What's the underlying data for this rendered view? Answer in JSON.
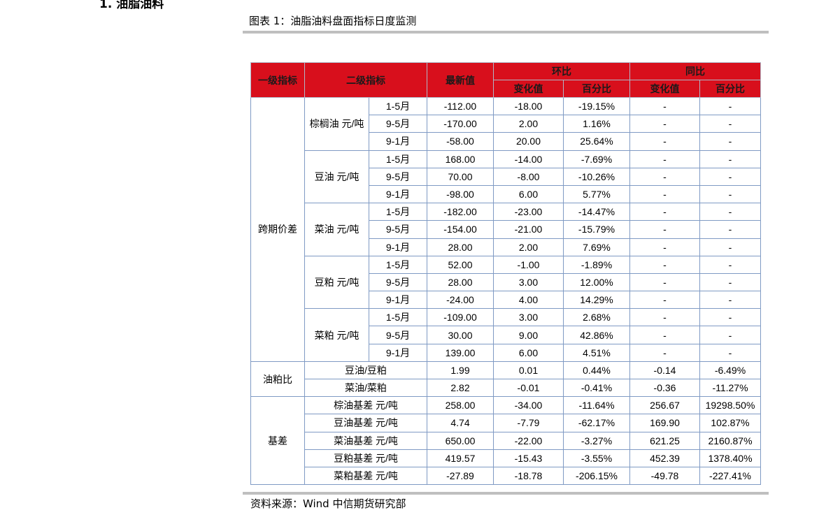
{
  "section_heading": "1. 油脂油料",
  "figure_title": "图表 1：油脂油料盘面指标日度监测",
  "source": "资料来源：Wind 中信期货研究部",
  "table": {
    "headers": {
      "level1": "一级指标",
      "level2": "二级指标",
      "latest": "最新值",
      "mom": "环比",
      "yoy": "同比",
      "change": "变化值",
      "pct": "百分比"
    },
    "groups": [
      {
        "name": "跨期价差",
        "subgroups": [
          {
            "name": "棕榈油 元/吨",
            "rows": [
              {
                "period": "1-5月",
                "latest": "-112.00",
                "mom_change": "-18.00",
                "mom_pct": "-19.15%",
                "yoy_change": "-",
                "yoy_pct": "-"
              },
              {
                "period": "9-5月",
                "latest": "-170.00",
                "mom_change": "2.00",
                "mom_pct": "1.16%",
                "yoy_change": "-",
                "yoy_pct": "-"
              },
              {
                "period": "9-1月",
                "latest": "-58.00",
                "mom_change": "20.00",
                "mom_pct": "25.64%",
                "yoy_change": "-",
                "yoy_pct": "-"
              }
            ]
          },
          {
            "name": "豆油 元/吨",
            "rows": [
              {
                "period": "1-5月",
                "latest": "168.00",
                "mom_change": "-14.00",
                "mom_pct": "-7.69%",
                "yoy_change": "-",
                "yoy_pct": "-"
              },
              {
                "period": "9-5月",
                "latest": "70.00",
                "mom_change": "-8.00",
                "mom_pct": "-10.26%",
                "yoy_change": "-",
                "yoy_pct": "-"
              },
              {
                "period": "9-1月",
                "latest": "-98.00",
                "mom_change": "6.00",
                "mom_pct": "5.77%",
                "yoy_change": "-",
                "yoy_pct": "-"
              }
            ]
          },
          {
            "name": "菜油 元/吨",
            "rows": [
              {
                "period": "1-5月",
                "latest": "-182.00",
                "mom_change": "-23.00",
                "mom_pct": "-14.47%",
                "yoy_change": "-",
                "yoy_pct": "-"
              },
              {
                "period": "9-5月",
                "latest": "-154.00",
                "mom_change": "-21.00",
                "mom_pct": "-15.79%",
                "yoy_change": "-",
                "yoy_pct": "-"
              },
              {
                "period": "9-1月",
                "latest": "28.00",
                "mom_change": "2.00",
                "mom_pct": "7.69%",
                "yoy_change": "-",
                "yoy_pct": "-"
              }
            ]
          },
          {
            "name": "豆粕 元/吨",
            "rows": [
              {
                "period": "1-5月",
                "latest": "52.00",
                "mom_change": "-1.00",
                "mom_pct": "-1.89%",
                "yoy_change": "-",
                "yoy_pct": "-"
              },
              {
                "period": "9-5月",
                "latest": "28.00",
                "mom_change": "3.00",
                "mom_pct": "12.00%",
                "yoy_change": "-",
                "yoy_pct": "-"
              },
              {
                "period": "9-1月",
                "latest": "-24.00",
                "mom_change": "4.00",
                "mom_pct": "14.29%",
                "yoy_change": "-",
                "yoy_pct": "-"
              }
            ]
          },
          {
            "name": "菜粕 元/吨",
            "rows": [
              {
                "period": "1-5月",
                "latest": "-109.00",
                "mom_change": "3.00",
                "mom_pct": "2.68%",
                "yoy_change": "-",
                "yoy_pct": "-"
              },
              {
                "period": "9-5月",
                "latest": "30.00",
                "mom_change": "9.00",
                "mom_pct": "42.86%",
                "yoy_change": "-",
                "yoy_pct": "-"
              },
              {
                "period": "9-1月",
                "latest": "139.00",
                "mom_change": "6.00",
                "mom_pct": "4.51%",
                "yoy_change": "-",
                "yoy_pct": "-"
              }
            ]
          }
        ]
      },
      {
        "name": "油粕比",
        "rows": [
          {
            "label": "豆油/豆粕",
            "latest": "1.99",
            "mom_change": "0.01",
            "mom_pct": "0.44%",
            "yoy_change": "-0.14",
            "yoy_pct": "-6.49%"
          },
          {
            "label": "菜油/菜粕",
            "latest": "2.82",
            "mom_change": "-0.01",
            "mom_pct": "-0.41%",
            "yoy_change": "-0.36",
            "yoy_pct": "-11.27%"
          }
        ]
      },
      {
        "name": "基差",
        "rows": [
          {
            "label": "棕油基差 元/吨",
            "latest": "258.00",
            "mom_change": "-34.00",
            "mom_pct": "-11.64%",
            "yoy_change": "256.67",
            "yoy_pct": "19298.50%"
          },
          {
            "label": "豆油基差 元/吨",
            "latest": "4.74",
            "mom_change": "-7.79",
            "mom_pct": "-62.17%",
            "yoy_change": "169.90",
            "yoy_pct": "102.87%"
          },
          {
            "label": "菜油基差 元/吨",
            "latest": "650.00",
            "mom_change": "-22.00",
            "mom_pct": "-3.27%",
            "yoy_change": "621.25",
            "yoy_pct": "2160.87%"
          },
          {
            "label": "豆粕基差 元/吨",
            "latest": "419.57",
            "mom_change": "-15.43",
            "mom_pct": "-3.55%",
            "yoy_change": "452.39",
            "yoy_pct": "1378.40%"
          },
          {
            "label": "菜粕基差 元/吨",
            "latest": "-27.89",
            "mom_change": "-18.78",
            "mom_pct": "-206.15%",
            "yoy_change": "-49.78",
            "yoy_pct": "-227.41%"
          }
        ]
      }
    ]
  },
  "colors": {
    "header_bg": "#d80f1c",
    "border": "#7f9ac4",
    "rule": "#bfbfbf"
  }
}
